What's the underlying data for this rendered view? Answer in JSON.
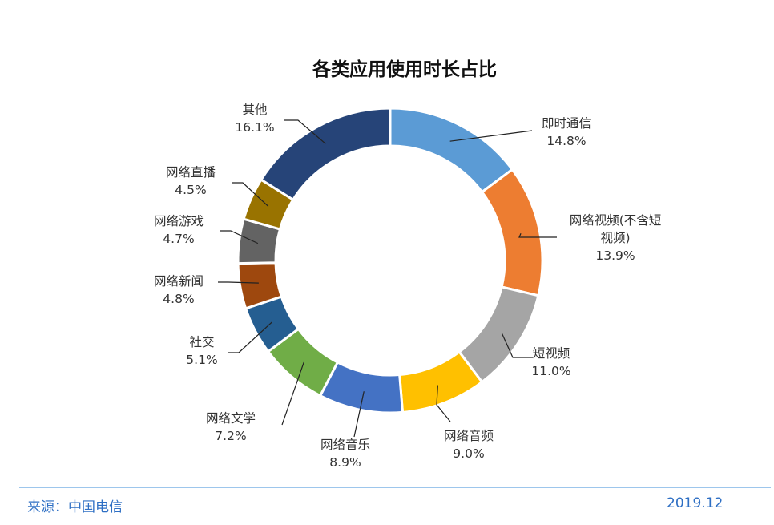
{
  "chart_data": {
    "type": "pie",
    "variant": "donut",
    "title": "各类应用使用时长占比",
    "slices": [
      {
        "name": "即时通信",
        "value": 14.8,
        "label_lines": [
          "即时通信",
          "14.8%"
        ],
        "color": "#5b9bd5"
      },
      {
        "name": "网络视频(不含短视频)",
        "value": 13.9,
        "label_lines": [
          "网络视频(不含短",
          "视频)",
          "13.9%"
        ],
        "color": "#ed7d31"
      },
      {
        "name": "短视频",
        "value": 11.0,
        "label_lines": [
          "短视频",
          "11.0%"
        ],
        "color": "#a5a5a5"
      },
      {
        "name": "网络音频",
        "value": 9.0,
        "label_lines": [
          "网络音频",
          "9.0%"
        ],
        "color": "#ffc000"
      },
      {
        "name": "网络音乐",
        "value": 8.9,
        "label_lines": [
          "网络音乐",
          "8.9%"
        ],
        "color": "#4472c4"
      },
      {
        "name": "网络文学",
        "value": 7.2,
        "label_lines": [
          "网络文学",
          "7.2%"
        ],
        "color": "#70ad47"
      },
      {
        "name": "社交",
        "value": 5.1,
        "label_lines": [
          "社交",
          "5.1%"
        ],
        "color": "#255e91"
      },
      {
        "name": "网络新闻",
        "value": 4.8,
        "label_lines": [
          "网络新闻",
          "4.8%"
        ],
        "color": "#9e480e"
      },
      {
        "name": "网络游戏",
        "value": 4.7,
        "label_lines": [
          "网络游戏",
          "4.7%"
        ],
        "color": "#636363"
      },
      {
        "name": "网络直播",
        "value": 4.5,
        "label_lines": [
          "网络直播",
          "4.5%"
        ],
        "color": "#997300"
      },
      {
        "name": "其他",
        "value": 16.1,
        "label_lines": [
          "其他",
          "16.1%"
        ],
        "color": "#264478"
      }
    ]
  },
  "footer": {
    "source": "来源：中国电信",
    "date": "2019.12"
  }
}
